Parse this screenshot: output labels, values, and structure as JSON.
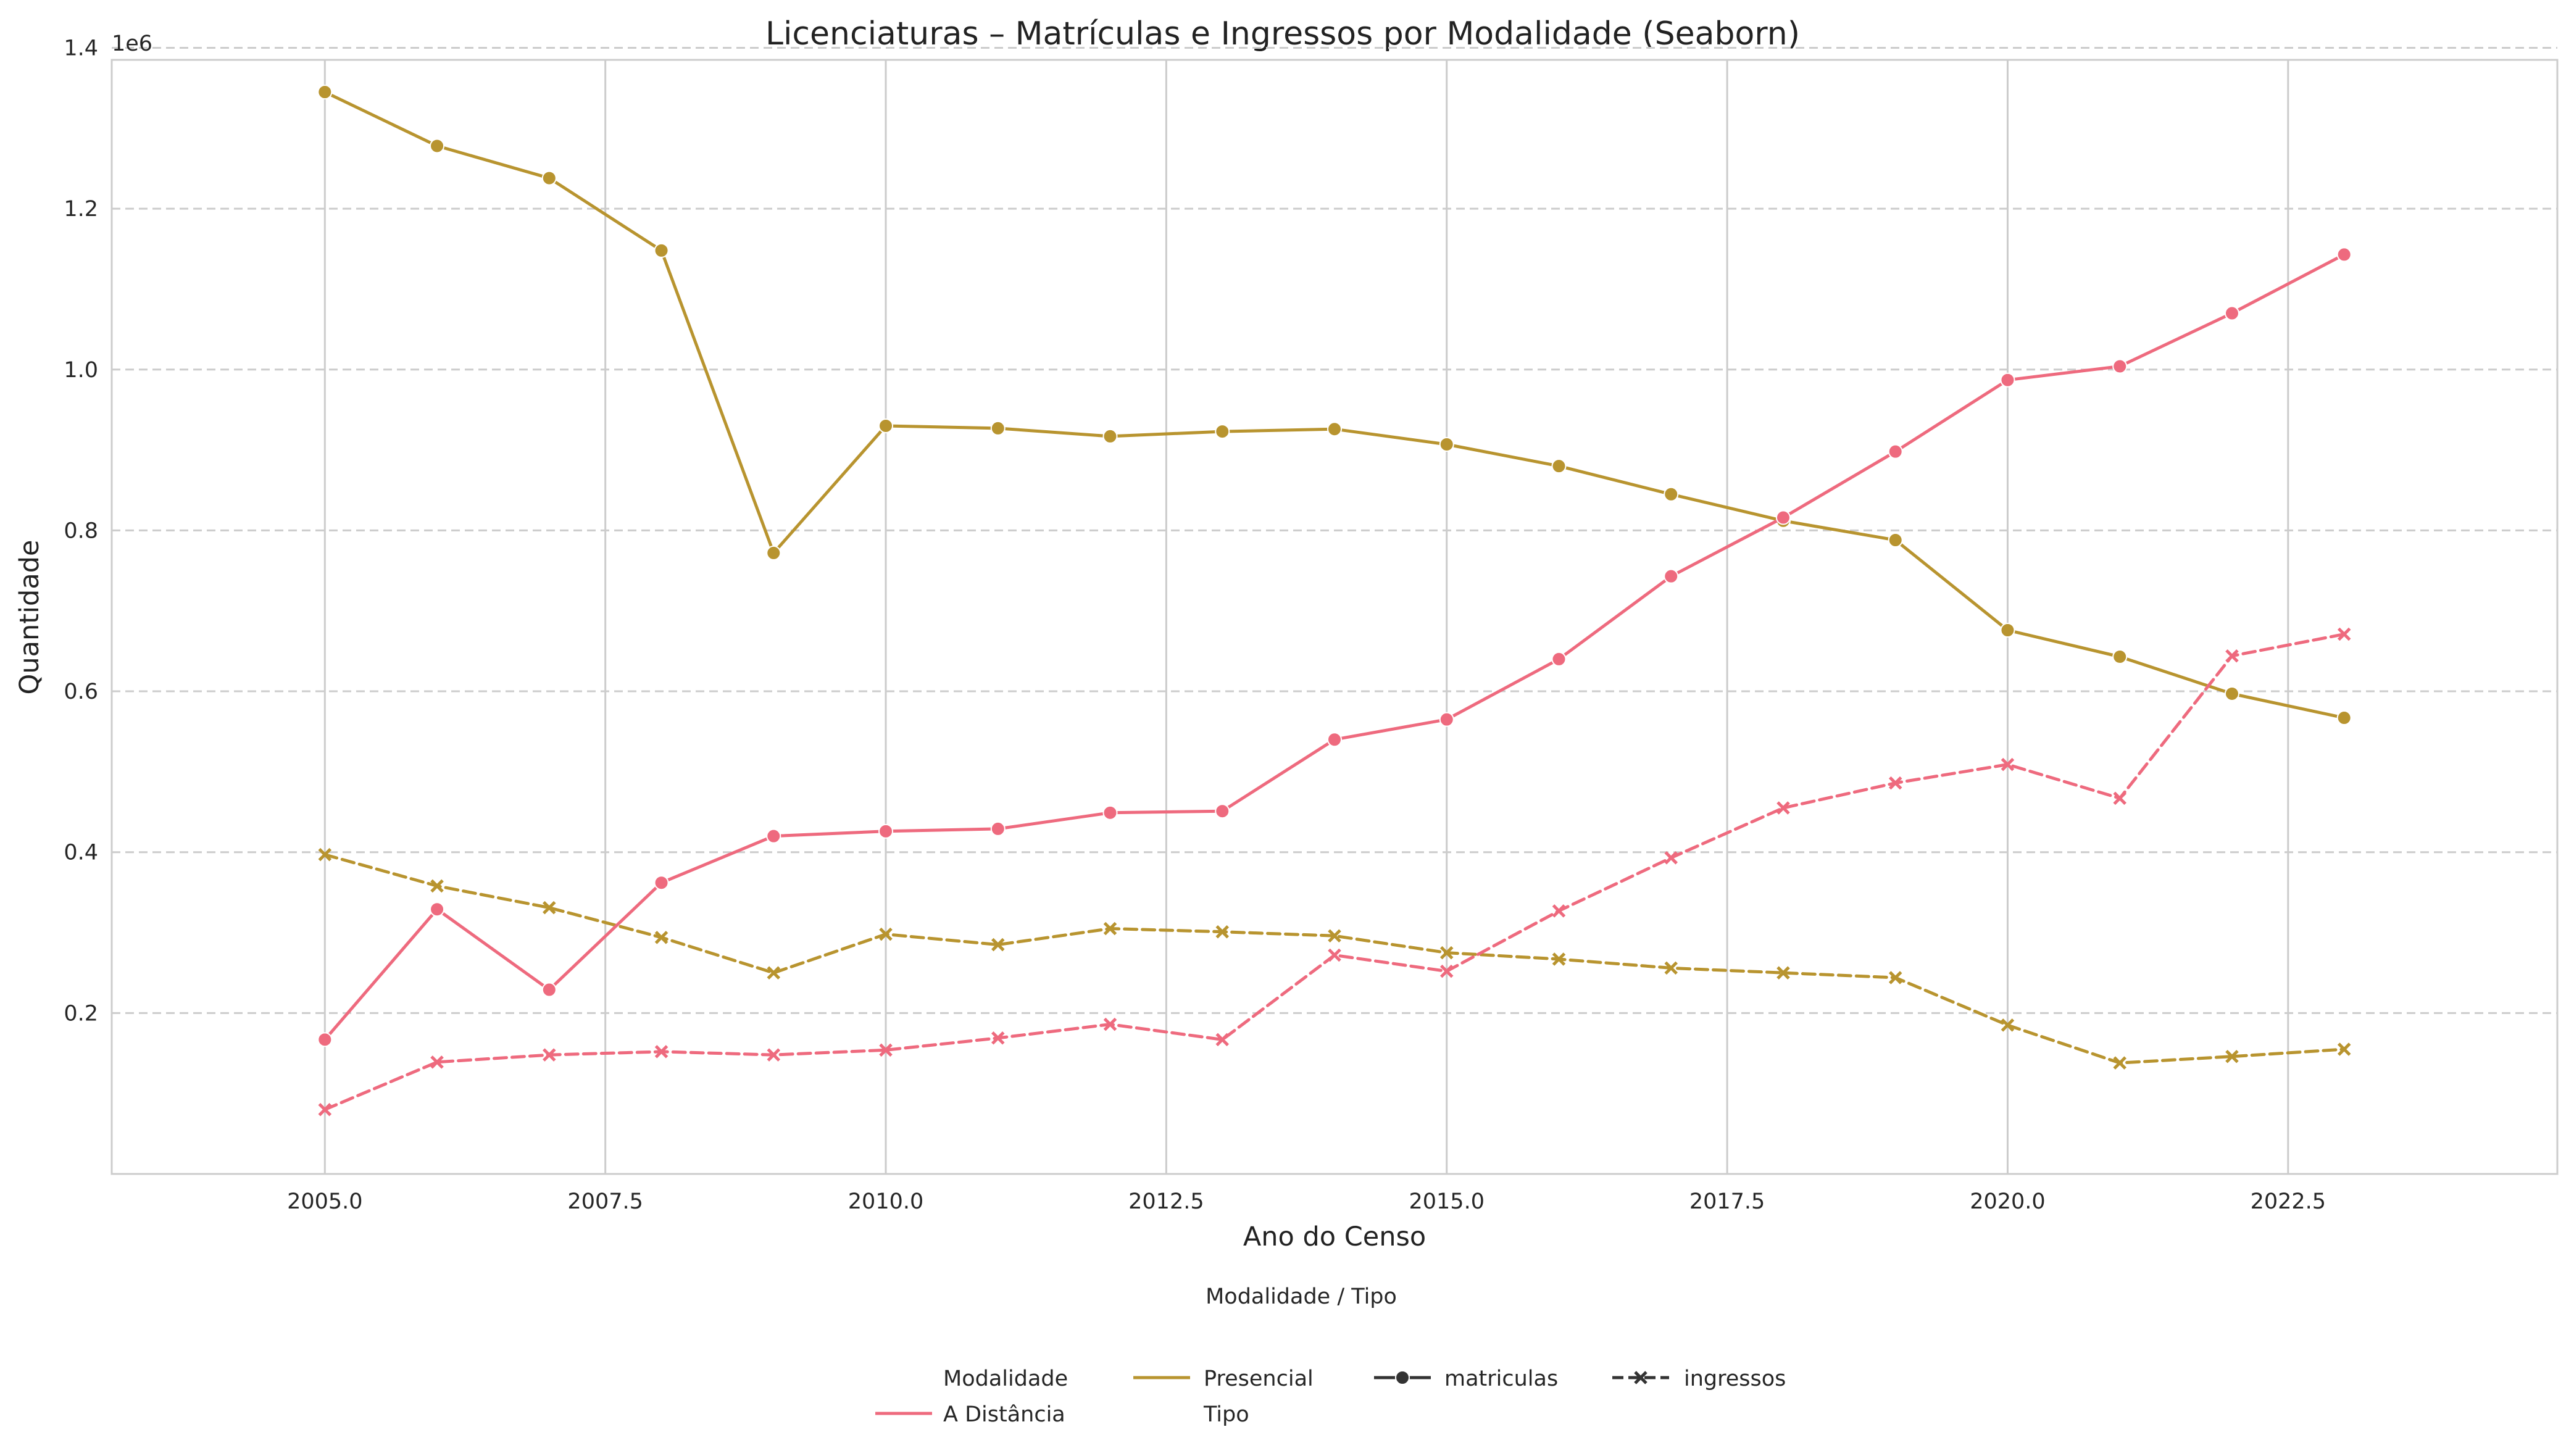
{
  "chart_data": {
    "type": "line",
    "title": "Licenciaturas – Matrículas e Ingressos por Modalidade (Seaborn)",
    "xlabel": "Ano do Censo",
    "ylabel": "Quantidade",
    "y_offset_label": "1e6",
    "xlim": [
      2003.1,
      2024.9
    ],
    "ylim": [
      0,
      1.385
    ],
    "x_ticks": [
      2005.0,
      2007.5,
      2010.0,
      2012.5,
      2015.0,
      2017.5,
      2020.0,
      2022.5
    ],
    "x_tick_labels": [
      "2005.0",
      "2007.5",
      "2010.0",
      "2012.5",
      "2015.0",
      "2017.5",
      "2020.0",
      "2022.5"
    ],
    "y_ticks": [
      0.2,
      0.4,
      0.6,
      0.8,
      1.0,
      1.2,
      1.4
    ],
    "y_tick_labels": [
      "0.2",
      "0.4",
      "0.6",
      "0.8",
      "1.0",
      "1.2",
      "1.4"
    ],
    "x_grid": true,
    "y_grid": "dashed",
    "x": [
      2005,
      2006,
      2007,
      2008,
      2009,
      2010,
      2011,
      2012,
      2013,
      2014,
      2015,
      2016,
      2017,
      2018,
      2019,
      2020,
      2021,
      2022,
      2023
    ],
    "series": [
      {
        "modalidade": "Presencial",
        "tipo": "matriculas",
        "color": "#b8942f",
        "dash": "solid",
        "marker": "circle",
        "values": [
          1.345,
          1.278,
          1.238,
          1.148,
          0.772,
          0.93,
          0.927,
          0.917,
          0.923,
          0.926,
          0.907,
          0.88,
          0.845,
          0.812,
          0.788,
          0.676,
          0.643,
          0.597,
          0.567
        ]
      },
      {
        "modalidade": "Presencial",
        "tipo": "ingressos",
        "color": "#b8942f",
        "dash": "dashed",
        "marker": "x",
        "values": [
          0.397,
          0.358,
          0.331,
          0.294,
          0.25,
          0.298,
          0.285,
          0.305,
          0.301,
          0.296,
          0.275,
          0.267,
          0.256,
          0.25,
          0.244,
          0.185,
          0.138,
          0.146,
          0.155
        ]
      },
      {
        "modalidade": "A Distância",
        "tipo": "matriculas",
        "color": "#ee6a7e",
        "dash": "solid",
        "marker": "circle",
        "values": [
          0.167,
          0.329,
          0.229,
          0.362,
          0.42,
          0.426,
          0.429,
          0.449,
          0.451,
          0.54,
          0.565,
          0.64,
          0.743,
          0.816,
          0.898,
          0.987,
          1.004,
          1.07,
          1.143
        ]
      },
      {
        "modalidade": "A Distância",
        "tipo": "ingressos",
        "color": "#ee6a7e",
        "dash": "dashed",
        "marker": "x",
        "values": [
          0.08,
          0.139,
          0.148,
          0.152,
          0.148,
          0.154,
          0.169,
          0.186,
          0.167,
          0.272,
          0.252,
          0.327,
          0.393,
          0.455,
          0.486,
          0.509,
          0.467,
          0.644,
          0.671
        ]
      }
    ],
    "legend": {
      "placement": "bottom-center",
      "title": "Modalidade / Tipo",
      "modalidade_header": "Modalidade",
      "tipo_header": "Tipo",
      "entries": [
        {
          "label": "A Distância",
          "color": "#ee6a7e",
          "dash": "solid",
          "marker": "none"
        },
        {
          "label": "Presencial",
          "color": "#b8942f",
          "dash": "solid",
          "marker": "none"
        },
        {
          "label": "matriculas",
          "color": "#333333",
          "dash": "solid",
          "marker": "circle"
        },
        {
          "label": "ingressos",
          "color": "#333333",
          "dash": "dashed",
          "marker": "x"
        }
      ]
    }
  }
}
